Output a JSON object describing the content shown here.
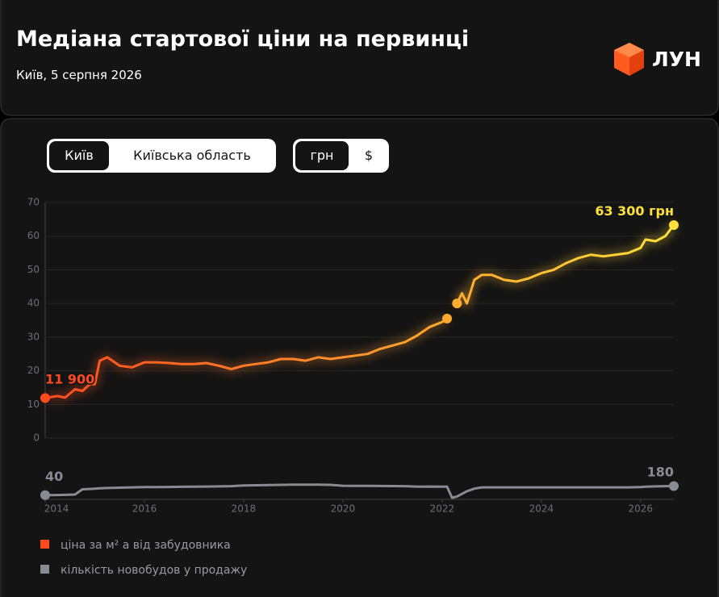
{
  "header": {
    "title": "Медіана стартової ціни на первинці",
    "subtitle": "Київ, 5 серпня 2026",
    "logo": "ЛУН"
  },
  "toggles": {
    "region": [
      "Київ",
      "Київська область"
    ],
    "currency": [
      "грн",
      "$"
    ]
  },
  "chart_data": {
    "type": "line",
    "x": [
      2014.0,
      2014.25,
      2014.4,
      2014.6,
      2014.75,
      2014.9,
      2015.0,
      2015.1,
      2015.25,
      2015.5,
      2015.75,
      2016.0,
      2016.25,
      2016.5,
      2016.75,
      2017.0,
      2017.25,
      2017.5,
      2017.75,
      2018.0,
      2018.25,
      2018.5,
      2018.75,
      2019.0,
      2019.25,
      2019.5,
      2019.75,
      2020.0,
      2020.25,
      2020.5,
      2020.75,
      2021.0,
      2021.25,
      2021.5,
      2021.75,
      2022.0,
      2022.1,
      2022.2,
      2022.3,
      2022.4,
      2022.5,
      2022.65,
      2022.8,
      2023.0,
      2023.25,
      2023.5,
      2023.75,
      2024.0,
      2024.25,
      2024.5,
      2024.75,
      2025.0,
      2025.25,
      2025.5,
      2025.75,
      2026.0,
      2026.1,
      2026.3,
      2026.5,
      2026.67
    ],
    "series": [
      {
        "name": "ціна за м² а від забудовника",
        "gradient": [
          "#ff4a1e",
          "#ffe03a"
        ],
        "start_label": "11 900",
        "end_label": "63 300 грн",
        "values": [
          11.9,
          12.5,
          12,
          14.5,
          14,
          16,
          16,
          23,
          24,
          21.5,
          21,
          22.5,
          22.5,
          22.3,
          22,
          22,
          22.3,
          21.5,
          20.5,
          21.5,
          22,
          22.5,
          23.5,
          23.5,
          23,
          24,
          23.5,
          24,
          24.5,
          25,
          26.5,
          27.5,
          28.5,
          30.5,
          33,
          34.5,
          35.5,
          null,
          40,
          43,
          40,
          47,
          48.5,
          48.5,
          47,
          46.5,
          47.5,
          49,
          50,
          52,
          53.5,
          54.5,
          54,
          54.5,
          55,
          56.5,
          59,
          58.5,
          60,
          63.3
        ]
      },
      {
        "name": "кількість новобудов у продажу",
        "color": "#8a8a92",
        "axis": "y2",
        "start_label": "40",
        "end_label": "180",
        "values": [
          40,
          42,
          45,
          50,
          130,
          135,
          140,
          145,
          150,
          155,
          160,
          165,
          165,
          166,
          168,
          170,
          172,
          175,
          178,
          190,
          192,
          195,
          198,
          200,
          200,
          200,
          198,
          185,
          183,
          182,
          181,
          180,
          178,
          170,
          172,
          170,
          170,
          0,
          20,
          60,
          100,
          140,
          160,
          160,
          160,
          160,
          160,
          160,
          160,
          160,
          160,
          160,
          160,
          160,
          160,
          165,
          170,
          175,
          178,
          180
        ]
      }
    ],
    "xlim": [
      2014.0,
      2026.67
    ],
    "xticks": [
      2014,
      2016,
      2018,
      2020,
      2022,
      2024,
      2026
    ],
    "ylim": [
      0,
      70
    ],
    "yticks": [
      0,
      10,
      20,
      30,
      40,
      50,
      60,
      70
    ],
    "y2lim": [
      0,
      260
    ],
    "grid": true
  }
}
